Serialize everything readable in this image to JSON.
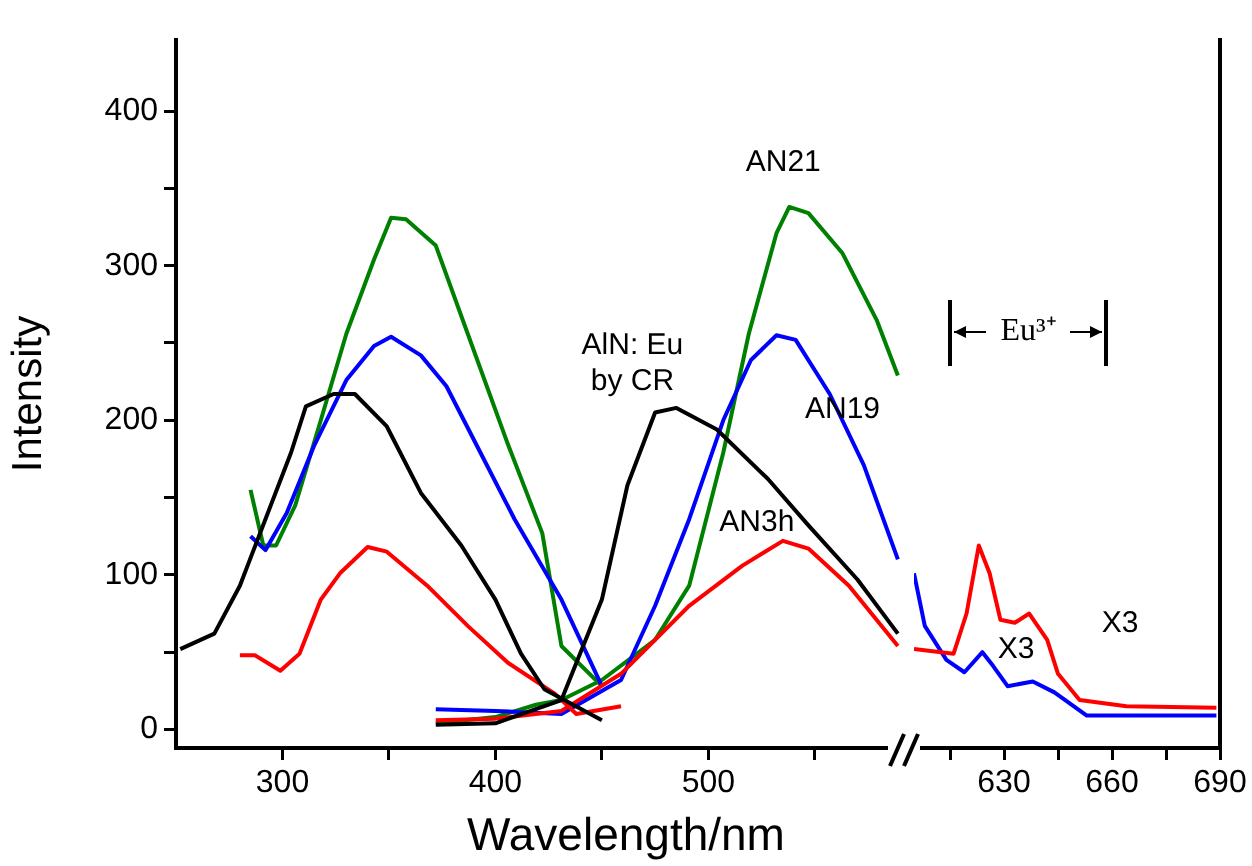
{
  "chart_data": [
    {
      "type": "line",
      "xlabel": "Wavelength/nm",
      "ylabel": "Intensity",
      "xlim": [
        250,
        590
      ],
      "xticks": [
        300,
        {
          "value": 350,
          "label": null
        },
        400,
        {
          "value": 450,
          "label": null
        },
        500,
        {
          "value": 550,
          "label": null
        }
      ],
      "ylim": [
        -12,
        446
      ],
      "yticks": [
        0,
        {
          "value": 50,
          "label": null
        },
        100,
        {
          "value": 150,
          "label": null
        },
        200,
        {
          "value": 250,
          "label": null
        },
        300,
        {
          "value": 350,
          "label": null
        },
        400
      ],
      "legend": false,
      "grid": false,
      "tick_labels": "xy",
      "series": [
        {
          "name": "AlN: Eu by CR",
          "color": "#000000",
          "x": [
            252,
            268,
            280,
            292,
            304,
            311,
            324,
            334,
            349,
            365,
            384,
            400,
            412,
            423,
            450,
            null,
            372,
            400,
            431,
            450,
            462,
            475,
            485,
            504,
            528,
            547,
            570,
            589
          ],
          "values": [
            52,
            62,
            93,
            136,
            179,
            209,
            217,
            217,
            196,
            153,
            119,
            84,
            49,
            26,
            6,
            null,
            3,
            4,
            19,
            84,
            158,
            205,
            208,
            194,
            162,
            132,
            97,
            62
          ]
        },
        {
          "name": "AN3h",
          "color": "#ff0000",
          "x": [
            280,
            287,
            299,
            308,
            318,
            327,
            340,
            349,
            368,
            387,
            406,
            428,
            438,
            459,
            null,
            372,
            400,
            431,
            459,
            491,
            516,
            535,
            547,
            566,
            589
          ],
          "values": [
            48,
            48,
            38,
            49,
            84,
            101,
            118,
            115,
            93,
            67,
            43,
            23,
            10,
            15,
            null,
            6,
            7,
            12,
            36,
            80,
            106,
            122,
            117,
            93,
            54
          ]
        },
        {
          "name": "AN19",
          "color": "#0000ff",
          "x": [
            285,
            292,
            302,
            315,
            330,
            343,
            351,
            365,
            377,
            393,
            409,
            431,
            450,
            null,
            372,
            400,
            431,
            459,
            475,
            491,
            507,
            520,
            532,
            541,
            557,
            573,
            589
          ],
          "values": [
            125,
            116,
            140,
            184,
            226,
            248,
            254,
            242,
            222,
            179,
            136,
            84,
            28,
            null,
            13,
            12,
            10,
            32,
            80,
            136,
            200,
            239,
            255,
            252,
            217,
            171,
            110
          ]
        },
        {
          "name": "AN21",
          "color": "#008000",
          "x": [
            285,
            291,
            297,
            306,
            318,
            330,
            343,
            351,
            358,
            372,
            387,
            406,
            422,
            431,
            450,
            null,
            372,
            400,
            419,
            431,
            450,
            475,
            491,
            507,
            519,
            532,
            538,
            547,
            563,
            579,
            589
          ],
          "values": [
            155,
            119,
            119,
            145,
            200,
            256,
            304,
            331,
            330,
            313,
            256,
            184,
            127,
            54,
            28,
            null,
            4,
            8,
            16,
            19,
            32,
            58,
            93,
            179,
            256,
            321,
            338,
            334,
            308,
            265,
            229
          ]
        }
      ]
    },
    {
      "type": "line",
      "xlim": [
        605,
        690
      ],
      "xticks": [
        {
          "value": 615,
          "label": null
        },
        630,
        {
          "value": 645,
          "label": null
        },
        660,
        {
          "value": 675,
          "label": null
        },
        690
      ],
      "ylim": [
        -12,
        446
      ],
      "legend": false,
      "grid": false,
      "tick_labels": "x",
      "series": [
        {
          "color": "#ff0000",
          "x": [
            605,
            616,
            619.6,
            623,
            626,
            629,
            633,
            637,
            642,
            645,
            651,
            664,
            689
          ],
          "values": [
            52,
            49,
            75,
            119,
            101,
            71,
            69,
            75,
            58,
            36,
            19,
            15,
            14
          ]
        },
        {
          "color": "#0000ff",
          "x": [
            605,
            608,
            614,
            619,
            624,
            627,
            631,
            638,
            644,
            653,
            689
          ],
          "values": [
            101,
            67,
            45,
            37,
            50,
            41,
            28,
            31,
            24,
            9,
            9
          ]
        }
      ],
      "annotations": [
        "Eu³⁺",
        "X3",
        "X3"
      ]
    }
  ]
}
